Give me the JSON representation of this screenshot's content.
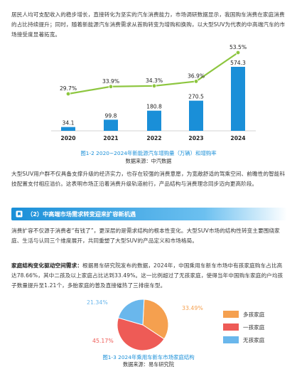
{
  "para1": "居民人均可支配收入的稳步增长，直接转化为坚实的汽车消费能力，市场调研数据显示，我国购车消费在家庭消费的占比持续提升；同时，随着新能源汽车消费需求从首购转变为增购和换购，以大型SUV为代表的中高端汽车的市场接受度显著拓宽。",
  "chart1": {
    "caption": "图1-2 2020~2024年新能源汽车增购量（万辆）和增购率",
    "source": "数据来源：中汽数据"
  },
  "para2": "大型SUV用户群不仅具备支撑升级的经济实力，也存在较强的消费意愿，为宽敞舒适的驾乘空间、前瞻性的智能科技配置支付相应溢价。这表明市场正沿着消费升级轨道前行，产品结构与消费理念同步迈向更高阶段。",
  "section": {
    "title": "（2）中高端市场需求转变迎来扩容新机遇"
  },
  "para3": "消费扩容不仅源于消费者“有钱了”，更深层的是需求结构的根本性变化。大型SUV市场的结构性转变主要围绕家庭、生活与认同三个维度展开，共同重塑了大型SUV的产品定义和市场格局。",
  "para4_bold": "家庭结构变化驱动空间需求：",
  "para4": "根据易车研究院发布的数据，2024年，中国乘用车新车市场中有孩家庭购车占比高达78.66%，其中二孩及以上家庭占比达到33.49%。这一比例超过了无孩家庭，使得当年中国购车家庭的户均孩子数量提升至1.21个，多胎家庭的普及直接催热了三排座车型。",
  "chart2": {
    "caption": "图1-3 2024年乘用车新车市场家庭结构",
    "source": "数据来源：易车研究院"
  },
  "colors": {
    "bar": "#1a8fd8",
    "line": "#8dc63f",
    "pie_orange": "#f5a04f",
    "pie_red": "#ee5b56",
    "pie_blue": "#6ab7ec"
  },
  "chart_data": [
    {
      "type": "bar",
      "categories": [
        "2020",
        "2021",
        "2022",
        "2023",
        "2024"
      ],
      "series": [
        {
          "values": [
            34.1,
            99.8,
            180.8,
            270.5,
            574.3
          ]
        },
        {
          "values": [
            29.7,
            33.9,
            34.3,
            36.9,
            53.5
          ]
        }
      ],
      "bar_labels": [
        "34.1",
        "99.8",
        "180.8",
        "270.5",
        "574.3"
      ],
      "line_labels": [
        "29.7%",
        "33.9%",
        "34.3%",
        "36.9%",
        "53.5%"
      ]
    },
    {
      "type": "pie",
      "categories": [
        "多孩家庭",
        "一孩家庭",
        "无孩家庭"
      ],
      "values": [
        33.49,
        45.17,
        21.34
      ],
      "labels": [
        "33.49%",
        "45.17%",
        "21.34%"
      ]
    }
  ]
}
